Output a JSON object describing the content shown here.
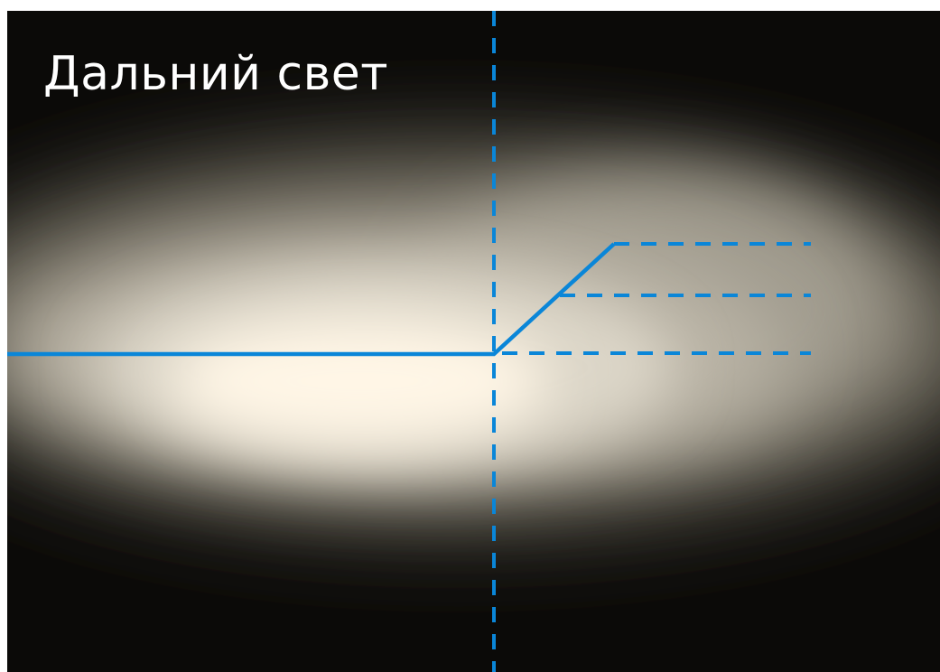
{
  "title": "Дальний свет",
  "colors": {
    "line": "#0a86d8",
    "background": "#0b0a08",
    "beam_core": "#fff6e6",
    "beam_mid": "#cfc8b8",
    "beam_outer": "#6e685d"
  },
  "icons": {
    "cutoff_line": "beam-cutoff-line",
    "vertical_axis": "vertical-dashed-axis",
    "reference_lines": "horizontal-dashed-reference-lines"
  }
}
